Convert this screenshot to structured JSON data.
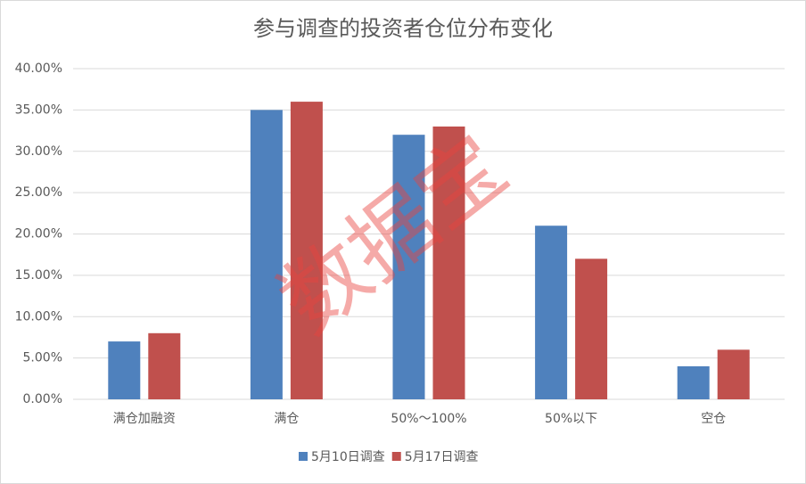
{
  "chart_data": {
    "type": "bar",
    "title": "参与调查的投资者仓位分布变化",
    "categories": [
      "满仓加融资",
      "满仓",
      "50%～100%",
      "50%以下",
      "空仓"
    ],
    "series": [
      {
        "name": "5月10日调查",
        "color": "#4f81bd",
        "values": [
          7,
          35,
          32,
          21,
          4
        ]
      },
      {
        "name": "5月17日调查",
        "color": "#c0504d",
        "values": [
          8,
          36,
          33,
          17,
          6
        ]
      }
    ],
    "ylim": [
      0,
      40
    ],
    "yticks": [
      {
        "value": 0,
        "label": "0.00%"
      },
      {
        "value": 5,
        "label": "5.00%"
      },
      {
        "value": 10,
        "label": "10.00%"
      },
      {
        "value": 15,
        "label": "15.00%"
      },
      {
        "value": 20,
        "label": "20.00%"
      },
      {
        "value": 25,
        "label": "25.00%"
      },
      {
        "value": 30,
        "label": "30.00%"
      },
      {
        "value": 35,
        "label": "35.00%"
      },
      {
        "value": 40,
        "label": "40.00%"
      }
    ],
    "grid": true,
    "legend": "bottom",
    "watermark": "数据宝"
  }
}
